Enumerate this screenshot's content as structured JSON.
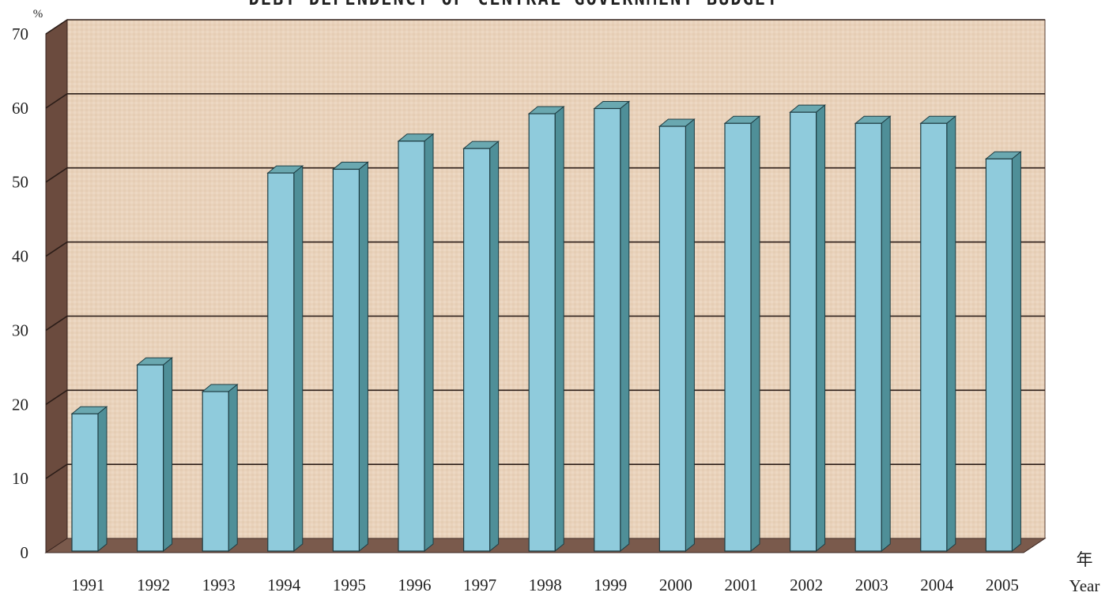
{
  "chart_data": {
    "type": "bar",
    "title": "DEBT DEPENDENCY OF CENTRAL GOVERNMENT BUDGET",
    "ylabel": "%",
    "xlabel_cn": "年",
    "xlabel": "Year",
    "ylim": [
      0,
      70
    ],
    "yticks": [
      "0",
      "10",
      "20",
      "30",
      "40",
      "50",
      "60",
      "70"
    ],
    "grid": true,
    "categories": [
      "1991",
      "1992",
      "1993",
      "1994",
      "1995",
      "1996",
      "1997",
      "1998",
      "1999",
      "2000",
      "2001",
      "2002",
      "2003",
      "2004",
      "2005"
    ],
    "values": [
      19.8,
      26.4,
      22.8,
      52.3,
      52.8,
      56.6,
      55.6,
      60.3,
      61.0,
      58.6,
      59.0,
      60.5,
      59.0,
      59.0,
      54.2
    ],
    "colors": {
      "bar_front": "#8fcbdc",
      "bar_side": "#4f8f98",
      "bar_top": "#6aa8b0",
      "wall": "#e8d0b8",
      "left_wall": "#6b4b3e",
      "floor": "#7a5a4c",
      "gridline": "#2b1d18"
    }
  }
}
